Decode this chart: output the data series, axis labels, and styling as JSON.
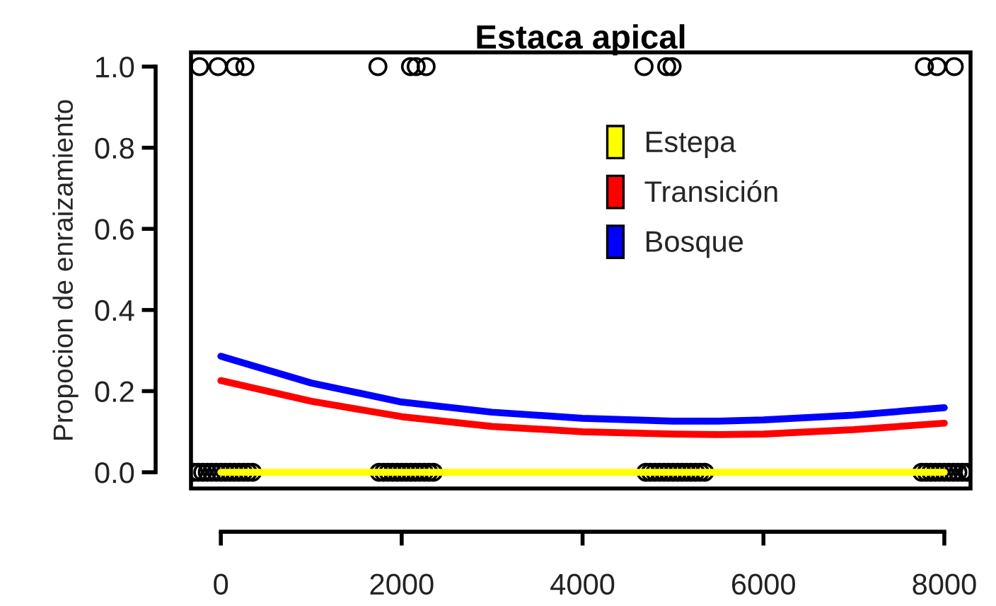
{
  "chart_data": {
    "type": "line",
    "title": "Estaca apical",
    "ylabel": "Propocion de enraizamiento",
    "xlim": [
      -330,
      8290
    ],
    "ylim": [
      -0.04,
      1.035
    ],
    "xticks": [
      0,
      2000,
      4000,
      6000,
      8000
    ],
    "yticks": [
      {
        "value": 0,
        "label": "0.0"
      },
      {
        "value": 0.2,
        "label": "0.2"
      },
      {
        "value": 0.4,
        "label": "0.4"
      },
      {
        "value": 0.6,
        "label": "0.6"
      },
      {
        "value": 0.8,
        "label": "0.8"
      },
      {
        "value": 1,
        "label": "1.0"
      }
    ],
    "grid": false,
    "legend": "right",
    "marker": "none",
    "line_style": "solid",
    "series": [
      {
        "name": "Estepa",
        "color": "#ffff00",
        "x": [
          0,
          8000
        ],
        "values": [
          0,
          0
        ]
      },
      {
        "name": "Transición",
        "color": "#ff0000",
        "x": [
          0,
          1000,
          2000,
          3000,
          4000,
          5000,
          5500,
          6000,
          7000,
          8000
        ],
        "values": [
          0.226,
          0.175,
          0.137,
          0.113,
          0.1,
          0.094,
          0.093,
          0.094,
          0.105,
          0.121
        ]
      },
      {
        "name": "Bosque",
        "color": "#0000ff",
        "x": [
          0,
          1000,
          2000,
          3000,
          4000,
          5000,
          5500,
          6000,
          7000,
          8000
        ],
        "values": [
          0.286,
          0.22,
          0.173,
          0.148,
          0.133,
          0.126,
          0.126,
          0.129,
          0.141,
          0.159
        ]
      },
      {
        "type": "scatter",
        "marker": "circle",
        "color": "#000000",
        "x": [
          -235,
          -31,
          156,
          266,
          1737,
          2097,
          2160,
          2270,
          4680,
          4930,
          4990,
          7780,
          7920,
          8110,
          -300,
          -250,
          -200,
          -150,
          -100,
          -50,
          0,
          50,
          100,
          150,
          200,
          250,
          300,
          350,
          1750,
          1800,
          1850,
          1900,
          1950,
          2000,
          2050,
          2100,
          2150,
          2200,
          2250,
          2300,
          2350,
          4700,
          4750,
          4800,
          4850,
          4900,
          4950,
          5000,
          5050,
          5100,
          5150,
          5200,
          5250,
          5300,
          5350,
          7750,
          7800,
          7850,
          7900,
          7950,
          8000,
          8050,
          8100,
          8150,
          8200,
          8250,
          8280
        ],
        "values": [
          1,
          1,
          1,
          1,
          1,
          1,
          1,
          1,
          1,
          1,
          1,
          1,
          1,
          1,
          0,
          0,
          0,
          0,
          0,
          0,
          0,
          0,
          0,
          0,
          0,
          0,
          0,
          0,
          0,
          0,
          0,
          0,
          0,
          0,
          0,
          0,
          0,
          0,
          0,
          0,
          0,
          0,
          0,
          0,
          0,
          0,
          0,
          0,
          0,
          0,
          0,
          0,
          0,
          0,
          0,
          0,
          0,
          0,
          0,
          0,
          0,
          0,
          0,
          0,
          0,
          0,
          0
        ]
      }
    ]
  }
}
